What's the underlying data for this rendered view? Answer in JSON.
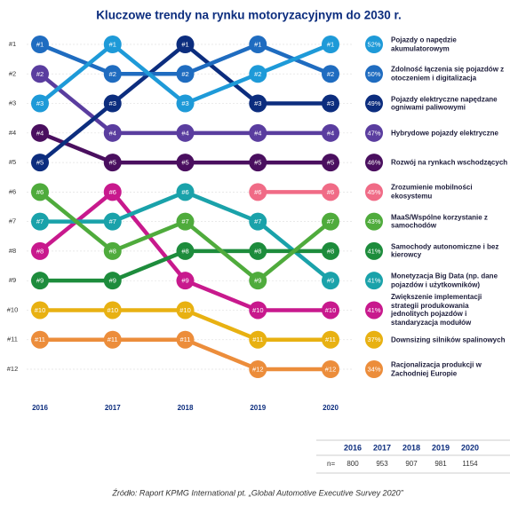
{
  "chart_data": {
    "type": "bump",
    "title": "Kluczowe trendy na rynku motoryzacyjnym do 2030 r.",
    "categories": [
      "2016",
      "2017",
      "2018",
      "2019",
      "2020"
    ],
    "ylim": [
      1,
      12
    ],
    "y_inverted": true,
    "grid": true,
    "yticks": [
      {
        "value": 1,
        "label": "#1"
      },
      {
        "value": 2,
        "label": "#2"
      },
      {
        "value": 3,
        "label": "#3"
      },
      {
        "value": 4,
        "label": "#4"
      },
      {
        "value": 5,
        "label": "#5"
      },
      {
        "value": 6,
        "label": "#6"
      },
      {
        "value": 7,
        "label": "#7"
      },
      {
        "value": 8,
        "label": "#8"
      },
      {
        "value": 9,
        "label": "#9"
      },
      {
        "value": 10,
        "label": "#10"
      },
      {
        "value": 11,
        "label": "#11"
      },
      {
        "value": 12,
        "label": "#12"
      }
    ],
    "series": [
      {
        "name": "Pojazdy o napędzie akumulatorowym",
        "color": "#1e9ad8",
        "share": 52,
        "share_label": "52%",
        "values": [
          3,
          1,
          3,
          2,
          1
        ],
        "value_labels": [
          "#3",
          "#1",
          "#3",
          "#2",
          "#1"
        ]
      },
      {
        "name": "Zdolność łączenia się pojazdów z otoczeniem i digitalizacja",
        "color": "#1f6cc0",
        "share": 50,
        "share_label": "50%",
        "values": [
          1,
          2,
          2,
          1,
          2
        ],
        "value_labels": [
          "#1",
          "#2",
          "#2",
          "#1",
          "#2"
        ]
      },
      {
        "name": "Pojazdy elektryczne napędzane ogniwami paliwowymi",
        "color": "#0c2d7e",
        "share": 49,
        "share_label": "49%",
        "values": [
          5,
          3,
          1,
          3,
          3
        ],
        "value_labels": [
          "#5",
          "#3",
          "#1",
          "#3",
          "#3"
        ]
      },
      {
        "name": "Hybrydowe pojazdy elektryczne",
        "color": "#5a3d9f",
        "share": 47,
        "share_label": "47%",
        "values": [
          2,
          4,
          4,
          4,
          4
        ],
        "value_labels": [
          "#2",
          "#4",
          "#4",
          "#4",
          "#4"
        ]
      },
      {
        "name": "Rozwój na rynkach wschodzących",
        "color": "#4a0f5f",
        "share": 46,
        "share_label": "46%",
        "values": [
          4,
          5,
          5,
          5,
          5
        ],
        "value_labels": [
          "#4",
          "#5",
          "#5",
          "#5",
          "#5"
        ]
      },
      {
        "name": "Zrozumienie mobilności ekosystemu",
        "color": "#f06b86",
        "share": 45,
        "share_label": "45%",
        "values": [
          null,
          null,
          null,
          6,
          6
        ],
        "value_labels": [
          null,
          null,
          null,
          "#6",
          "#6"
        ]
      },
      {
        "name": "MaaS/Wspólne korzystanie z samochodów",
        "color": "#4fab3c",
        "share": 43,
        "share_label": "43%",
        "values": [
          6,
          8,
          7,
          9,
          7
        ],
        "value_labels": [
          "#6",
          "#8",
          "#7",
          "#9",
          "#7"
        ]
      },
      {
        "name": "Samochody autonomiczne i bez kierowcy",
        "color": "#1d8c3c",
        "share": 41,
        "share_label": "41%",
        "values": [
          9,
          9,
          8,
          8,
          8
        ],
        "value_labels": [
          "#9",
          "#9",
          "#8",
          "#8",
          "#8"
        ]
      },
      {
        "name": "Monetyzacja Big Data (np. dane pojazdów i użytkowników)",
        "color": "#1aa2aa",
        "share": 41,
        "share_label": "41%",
        "values": [
          7,
          7,
          6,
          7,
          9
        ],
        "value_labels": [
          "#7",
          "#7",
          "#6",
          "#7",
          "#9"
        ]
      },
      {
        "name": "Zwiększenie implementacji strategii produkowania jednolitych pojazdów i standaryzacja modułów",
        "color": "#c8198d",
        "share": 41,
        "share_label": "41%",
        "values": [
          8,
          6,
          9,
          10,
          10
        ],
        "value_labels": [
          "#8",
          "#6",
          "#9",
          "#10",
          "#10"
        ]
      },
      {
        "name": "Downsizing silników spalinowych",
        "color": "#e8b112",
        "share": 37,
        "share_label": "37%",
        "values": [
          10,
          10,
          10,
          11,
          11
        ],
        "value_labels": [
          "#10",
          "#10",
          "#10",
          "#11",
          "#11"
        ]
      },
      {
        "name": "Racjonalizacja produkcji w Zachodniej Europie",
        "color": "#ec8d3b",
        "share": 34,
        "share_label": "34%",
        "values": [
          11,
          11,
          11,
          12,
          12
        ],
        "value_labels": [
          "#11",
          "#11",
          "#11",
          "#12",
          "#12"
        ]
      }
    ]
  },
  "table": {
    "header": [
      "2016",
      "2017",
      "2018",
      "2019",
      "2020"
    ],
    "row_label": "n=",
    "values": [
      800,
      953,
      907,
      981,
      1154
    ]
  },
  "source": "Źródło: Raport KPMG International pt. „Global Automotive Executive Survey 2020”"
}
